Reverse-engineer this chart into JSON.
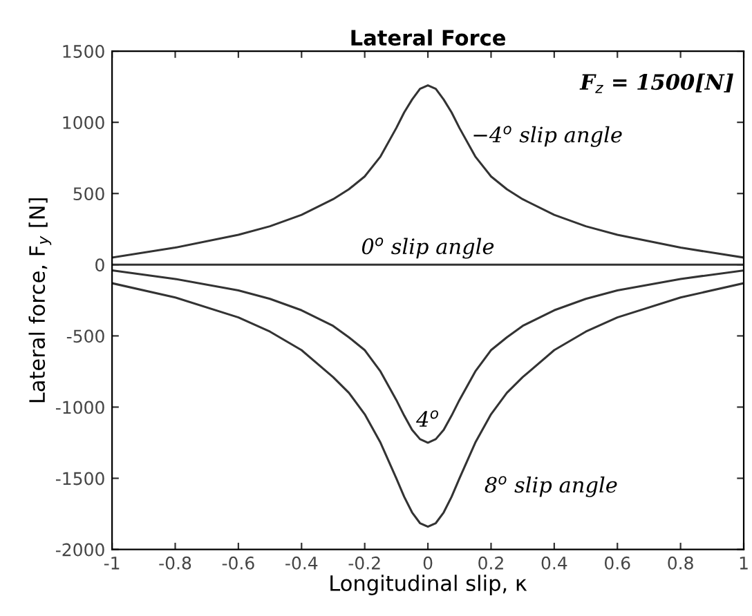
{
  "chart_data": {
    "type": "line",
    "title": "Lateral Force",
    "xlabel": "Longitudinal slip, κ",
    "ylabel": "Lateral force, F$_{y}$ [N]",
    "x": [
      -1,
      -0.8,
      -0.6,
      -0.5,
      -0.4,
      -0.3,
      -0.25,
      -0.2,
      -0.15,
      -0.1,
      -0.075,
      -0.05,
      -0.025,
      0,
      0.025,
      0.05,
      0.075,
      0.1,
      0.15,
      0.2,
      0.25,
      0.3,
      0.4,
      0.5,
      0.6,
      0.8,
      1
    ],
    "series": [
      {
        "color": "#333333",
        "values": [
          50,
          120,
          210,
          270,
          350,
          460,
          530,
          620,
          760,
          960,
          1070,
          1160,
          1235,
          1260,
          1235,
          1160,
          1070,
          960,
          760,
          620,
          530,
          460,
          350,
          270,
          210,
          120,
          50
        ]
      },
      {
        "color": "#333333",
        "values": [
          0,
          0,
          0,
          0,
          0,
          0,
          0,
          0,
          0,
          0,
          0,
          0,
          0,
          0,
          0,
          0,
          0,
          0,
          0,
          0,
          0,
          0,
          0,
          0,
          0,
          0,
          0
        ]
      },
      {
        "color": "#333333",
        "values": [
          -40,
          -100,
          -180,
          -240,
          -320,
          -430,
          -510,
          -600,
          -750,
          -950,
          -1060,
          -1160,
          -1225,
          -1250,
          -1225,
          -1160,
          -1060,
          -950,
          -750,
          -600,
          -510,
          -430,
          -320,
          -240,
          -180,
          -100,
          -40
        ]
      },
      {
        "color": "#333333",
        "values": [
          -130,
          -230,
          -370,
          -470,
          -600,
          -790,
          -900,
          -1050,
          -1250,
          -1500,
          -1630,
          -1740,
          -1815,
          -1840,
          -1815,
          -1740,
          -1630,
          -1500,
          -1250,
          -1050,
          -900,
          -790,
          -600,
          -470,
          -370,
          -230,
          -130
        ]
      }
    ],
    "annotations": [
      {
        "text": "−4$^{o}$ slip angle",
        "x": 0.12,
        "y": 900
      },
      {
        "text": "0$^{o}$ slip angle",
        "x": 0,
        "y": 0
      },
      {
        "text": "4$^{o}$",
        "x": 0,
        "y": -1250
      },
      {
        "text": "8$^{o}$ slip angle",
        "x": 0.13,
        "y": -1350
      },
      "F$_{z}$ = 1500[N]"
    ],
    "xlim": [
      -1,
      1
    ],
    "xticks": [
      -1,
      -0.8,
      -0.6,
      -0.4,
      -0.2,
      0,
      0.2,
      0.4,
      0.6,
      0.8,
      1
    ],
    "ylim": [
      -2000,
      1500
    ],
    "yticks": [
      -2000,
      -1500,
      -1000,
      -500,
      0,
      500,
      1000,
      1500
    ],
    "grid": false,
    "legend": false,
    "marker": "none",
    "line_style": "solid"
  }
}
